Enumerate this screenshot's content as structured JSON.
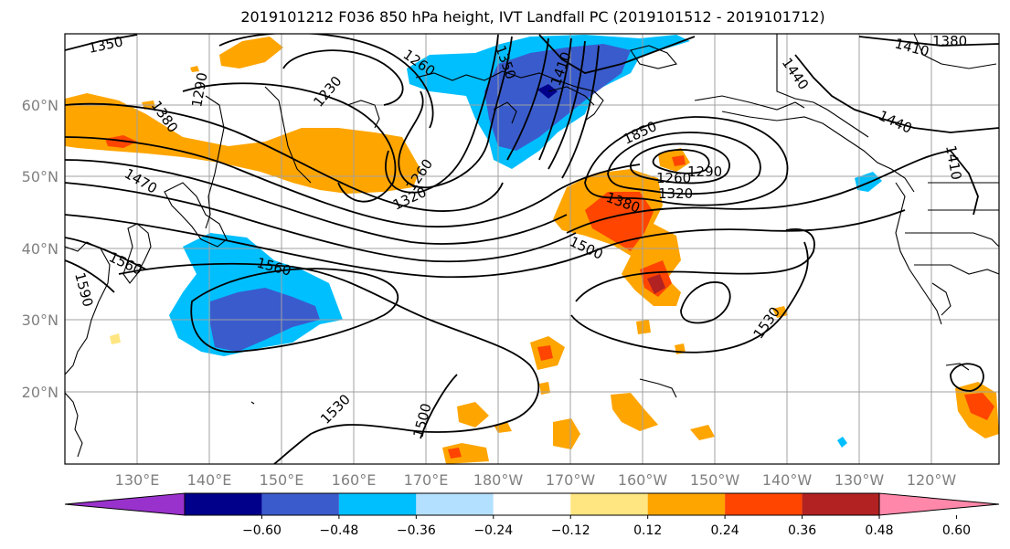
{
  "title": "2019101212 F036 850 hPa height, IVT Landfall PC (2019101512 - 2019101712)",
  "lat_labels": [
    "60°N",
    "50°N",
    "40°N",
    "30°N",
    "20°N"
  ],
  "lon_labels": [
    "130°E",
    "140°E",
    "150°E",
    "160°E",
    "170°E",
    "180°W",
    "170°W",
    "160°W",
    "150°W",
    "140°W",
    "130°W",
    "120°W"
  ],
  "contour_labels": [
    "1350",
    "1260",
    "1350",
    "1410",
    "1380",
    "1410",
    "1290",
    "1230",
    "1380",
    "1440",
    "1470",
    "1440",
    "1850",
    "1260",
    "1290",
    "1260",
    "1320",
    "1320",
    "1380",
    "1410",
    "1500",
    "1560",
    "1560",
    "1590",
    "1530",
    "1530",
    "1500"
  ],
  "colorbar": {
    "colors": [
      "#9932cc",
      "#00008b",
      "#3a5bcc",
      "#00bfff",
      "#b3e0ff",
      "#ffffff",
      "#ffe680",
      "#ffa500",
      "#ff4500",
      "#b22222",
      "#ff88aa"
    ],
    "tick_labels": [
      "−0.60",
      "−0.48",
      "−0.36",
      "−0.24",
      "−0.12",
      "0.12",
      "0.24",
      "0.36",
      "0.48",
      "0.60"
    ]
  },
  "colors": {
    "land_outline": "#000000",
    "contour": "#000000",
    "grid": "#a0a0a0",
    "tick_label": "#808080"
  }
}
